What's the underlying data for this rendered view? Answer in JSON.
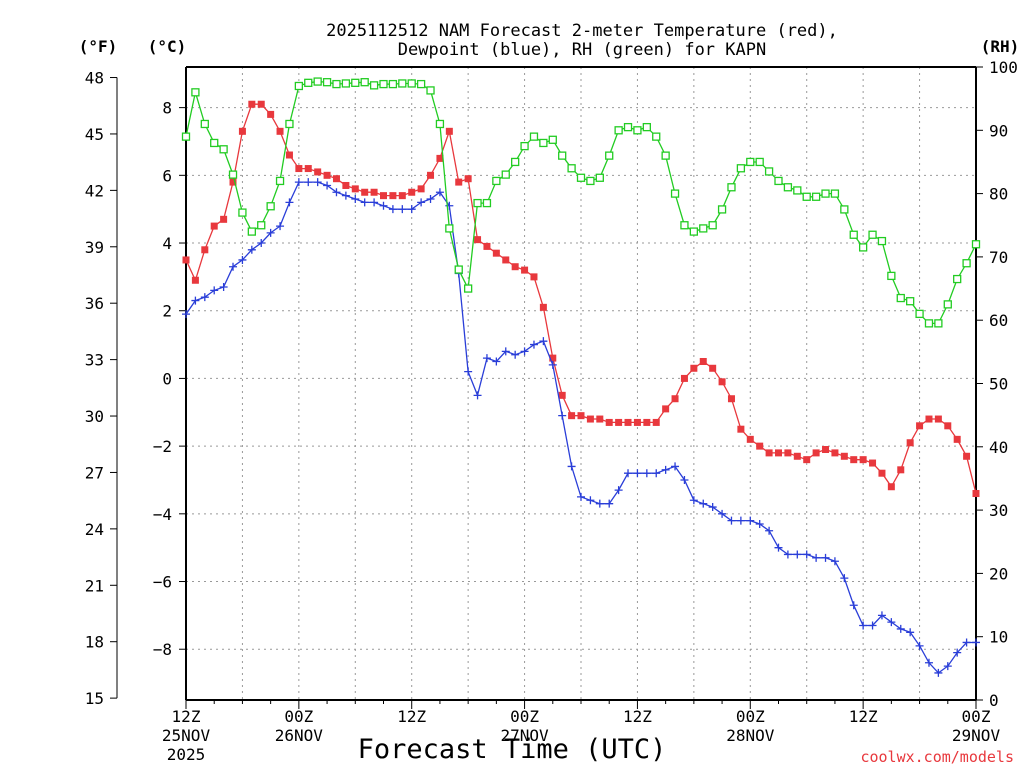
{
  "chart_data": {
    "type": "line",
    "title": "2025112512 NAM Forecast 2-meter Temperature (red),",
    "subtitle": "Dewpoint (blue), RH (green) for KAPN",
    "xlabel": "Forecast Time (UTC)",
    "ylabel_left_f": "(°F)",
    "ylabel_left_c": "(°C)",
    "ylabel_right": "(RH)",
    "credit": "coolwx.com/models",
    "x_unit": "forecast hour",
    "xlim": [
      0,
      84
    ],
    "ylim_c": [
      -9.5,
      9.2
    ],
    "ylim_rh": [
      0,
      100
    ],
    "x_ticks": [
      {
        "hour": 0,
        "line1": "12Z",
        "line2": "25NOV",
        "line3": "2025"
      },
      {
        "hour": 12,
        "line1": "00Z",
        "line2": "26NOV",
        "line3": ""
      },
      {
        "hour": 24,
        "line1": "12Z",
        "line2": "",
        "line3": ""
      },
      {
        "hour": 36,
        "line1": "00Z",
        "line2": "27NOV",
        "line3": ""
      },
      {
        "hour": 48,
        "line1": "12Z",
        "line2": "",
        "line3": ""
      },
      {
        "hour": 60,
        "line1": "00Z",
        "line2": "28NOV",
        "line3": ""
      },
      {
        "hour": 72,
        "line1": "12Z",
        "line2": "",
        "line3": ""
      },
      {
        "hour": 84,
        "line1": "00Z",
        "line2": "29NOV",
        "line3": ""
      }
    ],
    "y_ticks_c": [
      8,
      6,
      4,
      2,
      0,
      -2,
      -4,
      -6,
      -8
    ],
    "y_ticks_f": [
      48,
      45,
      42,
      39,
      36,
      33,
      30,
      27,
      24,
      21,
      18,
      15
    ],
    "y_ticks_rh": [
      100,
      90,
      80,
      70,
      60,
      50,
      40,
      30,
      20,
      10,
      0
    ],
    "series": [
      {
        "name": "Temperature",
        "color": "#e8383d",
        "unit": "C",
        "marker": "filled-square",
        "points": [
          [
            0,
            3.5
          ],
          [
            1,
            2.9
          ],
          [
            2,
            3.8
          ],
          [
            3,
            4.5
          ],
          [
            4,
            4.7
          ],
          [
            5,
            5.8
          ],
          [
            6,
            7.3
          ],
          [
            7,
            8.1
          ],
          [
            8,
            8.1
          ],
          [
            9,
            7.8
          ],
          [
            10,
            7.3
          ],
          [
            11,
            6.6
          ],
          [
            12,
            6.2
          ],
          [
            13,
            6.2
          ],
          [
            14,
            6.1
          ],
          [
            15,
            6.0
          ],
          [
            16,
            5.9
          ],
          [
            17,
            5.7
          ],
          [
            18,
            5.6
          ],
          [
            19,
            5.5
          ],
          [
            20,
            5.5
          ],
          [
            21,
            5.4
          ],
          [
            22,
            5.4
          ],
          [
            23,
            5.4
          ],
          [
            24,
            5.5
          ],
          [
            25,
            5.6
          ],
          [
            26,
            6.0
          ],
          [
            27,
            6.5
          ],
          [
            28,
            7.3
          ],
          [
            29,
            5.8
          ],
          [
            30,
            5.9
          ],
          [
            31,
            4.1
          ],
          [
            32,
            3.9
          ],
          [
            33,
            3.7
          ],
          [
            34,
            3.5
          ],
          [
            35,
            3.3
          ],
          [
            36,
            3.2
          ],
          [
            37,
            3.0
          ],
          [
            38,
            2.1
          ],
          [
            39,
            0.6
          ],
          [
            40,
            -0.5
          ],
          [
            41,
            -1.1
          ],
          [
            42,
            -1.1
          ],
          [
            43,
            -1.2
          ],
          [
            44,
            -1.2
          ],
          [
            45,
            -1.3
          ],
          [
            46,
            -1.3
          ],
          [
            47,
            -1.3
          ],
          [
            48,
            -1.3
          ],
          [
            49,
            -1.3
          ],
          [
            50,
            -1.3
          ],
          [
            51,
            -0.9
          ],
          [
            52,
            -0.6
          ],
          [
            53,
            0.0
          ],
          [
            54,
            0.3
          ],
          [
            55,
            0.5
          ],
          [
            56,
            0.3
          ],
          [
            57,
            -0.1
          ],
          [
            58,
            -0.6
          ],
          [
            59,
            -1.5
          ],
          [
            60,
            -1.8
          ],
          [
            61,
            -2.0
          ],
          [
            62,
            -2.2
          ],
          [
            63,
            -2.2
          ],
          [
            64,
            -2.2
          ],
          [
            65,
            -2.3
          ],
          [
            66,
            -2.4
          ],
          [
            67,
            -2.2
          ],
          [
            68,
            -2.1
          ],
          [
            69,
            -2.2
          ],
          [
            70,
            -2.3
          ],
          [
            71,
            -2.4
          ],
          [
            72,
            -2.4
          ],
          [
            73,
            -2.5
          ],
          [
            74,
            -2.8
          ],
          [
            75,
            -3.2
          ],
          [
            76,
            -2.7
          ],
          [
            77,
            -1.9
          ],
          [
            78,
            -1.4
          ],
          [
            79,
            -1.2
          ],
          [
            80,
            -1.2
          ],
          [
            81,
            -1.4
          ],
          [
            82,
            -1.8
          ],
          [
            83,
            -2.3
          ],
          [
            84,
            -3.4
          ]
        ]
      },
      {
        "name": "Dewpoint",
        "color": "#2a3ed8",
        "unit": "C",
        "marker": "plus",
        "points": [
          [
            0,
            1.9
          ],
          [
            1,
            2.3
          ],
          [
            2,
            2.4
          ],
          [
            3,
            2.6
          ],
          [
            4,
            2.7
          ],
          [
            5,
            3.3
          ],
          [
            6,
            3.5
          ],
          [
            7,
            3.8
          ],
          [
            8,
            4.0
          ],
          [
            9,
            4.3
          ],
          [
            10,
            4.5
          ],
          [
            11,
            5.2
          ],
          [
            12,
            5.8
          ],
          [
            13,
            5.8
          ],
          [
            14,
            5.8
          ],
          [
            15,
            5.7
          ],
          [
            16,
            5.5
          ],
          [
            17,
            5.4
          ],
          [
            18,
            5.3
          ],
          [
            19,
            5.2
          ],
          [
            20,
            5.2
          ],
          [
            21,
            5.1
          ],
          [
            22,
            5.0
          ],
          [
            23,
            5.0
          ],
          [
            24,
            5.0
          ],
          [
            25,
            5.2
          ],
          [
            26,
            5.3
          ],
          [
            27,
            5.5
          ],
          [
            28,
            5.1
          ],
          [
            29,
            3.1
          ],
          [
            30,
            0.2
          ],
          [
            31,
            -0.5
          ],
          [
            32,
            0.6
          ],
          [
            33,
            0.5
          ],
          [
            34,
            0.8
          ],
          [
            35,
            0.7
          ],
          [
            36,
            0.8
          ],
          [
            37,
            1.0
          ],
          [
            38,
            1.1
          ],
          [
            39,
            0.4
          ],
          [
            40,
            -1.1
          ],
          [
            41,
            -2.6
          ],
          [
            42,
            -3.5
          ],
          [
            43,
            -3.6
          ],
          [
            44,
            -3.7
          ],
          [
            45,
            -3.7
          ],
          [
            46,
            -3.3
          ],
          [
            47,
            -2.8
          ],
          [
            48,
            -2.8
          ],
          [
            49,
            -2.8
          ],
          [
            50,
            -2.8
          ],
          [
            51,
            -2.7
          ],
          [
            52,
            -2.6
          ],
          [
            53,
            -3.0
          ],
          [
            54,
            -3.6
          ],
          [
            55,
            -3.7
          ],
          [
            56,
            -3.8
          ],
          [
            57,
            -4.0
          ],
          [
            58,
            -4.2
          ],
          [
            59,
            -4.2
          ],
          [
            60,
            -4.2
          ],
          [
            61,
            -4.3
          ],
          [
            62,
            -4.5
          ],
          [
            63,
            -5.0
          ],
          [
            64,
            -5.2
          ],
          [
            65,
            -5.2
          ],
          [
            66,
            -5.2
          ],
          [
            67,
            -5.3
          ],
          [
            68,
            -5.3
          ],
          [
            69,
            -5.4
          ],
          [
            70,
            -5.9
          ],
          [
            71,
            -6.7
          ],
          [
            72,
            -7.3
          ],
          [
            73,
            -7.3
          ],
          [
            74,
            -7.0
          ],
          [
            75,
            -7.2
          ],
          [
            76,
            -7.4
          ],
          [
            77,
            -7.5
          ],
          [
            78,
            -7.9
          ],
          [
            79,
            -8.4
          ],
          [
            80,
            -8.7
          ],
          [
            81,
            -8.5
          ],
          [
            82,
            -8.1
          ],
          [
            83,
            -7.8
          ],
          [
            84,
            -7.8
          ]
        ]
      },
      {
        "name": "Relative Humidity",
        "color": "#22cc22",
        "unit": "%",
        "marker": "open-square",
        "points": [
          [
            0,
            89
          ],
          [
            1,
            96
          ],
          [
            2,
            91
          ],
          [
            3,
            88
          ],
          [
            4,
            87
          ],
          [
            5,
            83
          ],
          [
            6,
            77
          ],
          [
            7,
            74
          ],
          [
            8,
            75
          ],
          [
            9,
            78
          ],
          [
            10,
            82
          ],
          [
            11,
            91
          ],
          [
            12,
            97
          ],
          [
            13,
            97.5
          ],
          [
            14,
            97.7
          ],
          [
            15,
            97.6
          ],
          [
            16,
            97.3
          ],
          [
            17,
            97.4
          ],
          [
            18,
            97.5
          ],
          [
            19,
            97.6
          ],
          [
            20,
            97.1
          ],
          [
            21,
            97.3
          ],
          [
            22,
            97.3
          ],
          [
            23,
            97.4
          ],
          [
            24,
            97.4
          ],
          [
            25,
            97.3
          ],
          [
            26,
            96.3
          ],
          [
            27,
            91
          ],
          [
            28,
            74.5
          ],
          [
            29,
            68
          ],
          [
            30,
            65
          ],
          [
            31,
            78.5
          ],
          [
            32,
            78.5
          ],
          [
            33,
            82
          ],
          [
            34,
            83
          ],
          [
            35,
            85
          ],
          [
            36,
            87.5
          ],
          [
            37,
            89
          ],
          [
            38,
            88
          ],
          [
            39,
            88.5
          ],
          [
            40,
            86
          ],
          [
            41,
            84
          ],
          [
            42,
            82.5
          ],
          [
            43,
            82
          ],
          [
            44,
            82.5
          ],
          [
            45,
            86
          ],
          [
            46,
            90
          ],
          [
            47,
            90.5
          ],
          [
            48,
            90
          ],
          [
            49,
            90.5
          ],
          [
            50,
            89
          ],
          [
            51,
            86
          ],
          [
            52,
            80
          ],
          [
            53,
            75
          ],
          [
            54,
            74
          ],
          [
            55,
            74.5
          ],
          [
            56,
            75
          ],
          [
            57,
            77.5
          ],
          [
            58,
            81
          ],
          [
            59,
            84
          ],
          [
            60,
            85
          ],
          [
            61,
            85
          ],
          [
            62,
            83.5
          ],
          [
            63,
            82
          ],
          [
            64,
            81
          ],
          [
            65,
            80.5
          ],
          [
            66,
            79.5
          ],
          [
            67,
            79.5
          ],
          [
            68,
            80
          ],
          [
            69,
            80
          ],
          [
            70,
            77.5
          ],
          [
            71,
            73.5
          ],
          [
            72,
            71.5
          ],
          [
            73,
            73.5
          ],
          [
            74,
            72.5
          ],
          [
            75,
            67
          ],
          [
            76,
            63.5
          ],
          [
            77,
            63
          ],
          [
            78,
            61
          ],
          [
            79,
            59.5
          ],
          [
            80,
            59.5
          ],
          [
            81,
            62.5
          ],
          [
            82,
            66.5
          ],
          [
            83,
            69
          ],
          [
            84,
            72
          ]
        ]
      }
    ]
  }
}
